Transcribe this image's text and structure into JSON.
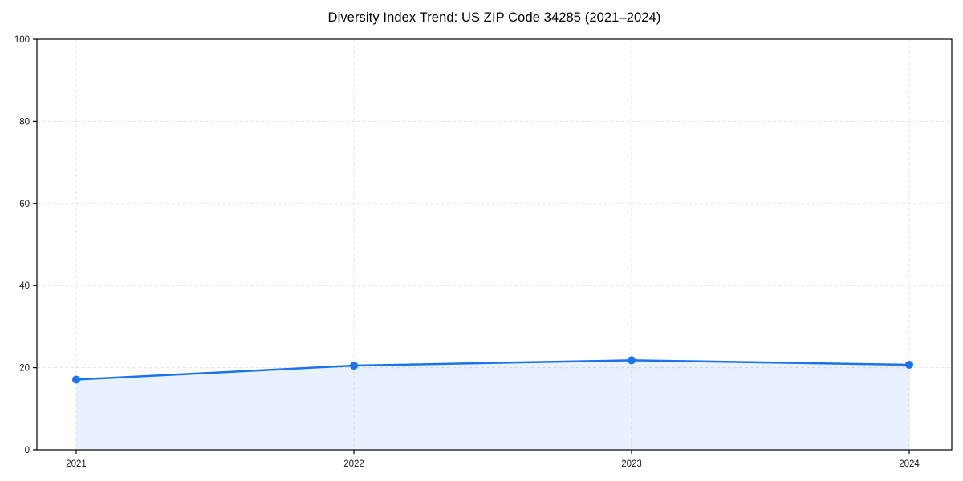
{
  "figure": {
    "background": "#ffffff"
  },
  "chart_data": {
    "type": "area",
    "title": "Diversity Index Trend: US ZIP Code 34285 (2021–2024)",
    "x": [
      2021,
      2022,
      2023,
      2024
    ],
    "x_tick_labels": [
      "2021",
      "2022",
      "2023",
      "2024"
    ],
    "series": [
      {
        "name": "Diversity Index",
        "values": [
          17.1,
          20.5,
          21.8,
          20.7
        ]
      }
    ],
    "xlabel": "",
    "ylabel": "",
    "ylim": [
      0,
      100
    ],
    "yticks": [
      0,
      20,
      40,
      60,
      80,
      100
    ],
    "y_tick_labels": [
      "0",
      "20",
      "40",
      "60",
      "80",
      "100"
    ],
    "grid": "dashed",
    "legend": "none",
    "colors": {
      "line": "#1a73e8",
      "marker": "#1a73e8",
      "fill": "rgba(26,115,232,0.10)",
      "grid": "#e4e4e4",
      "spine": "#000000",
      "tick": "#000000",
      "text": "#1a1a1a"
    }
  }
}
